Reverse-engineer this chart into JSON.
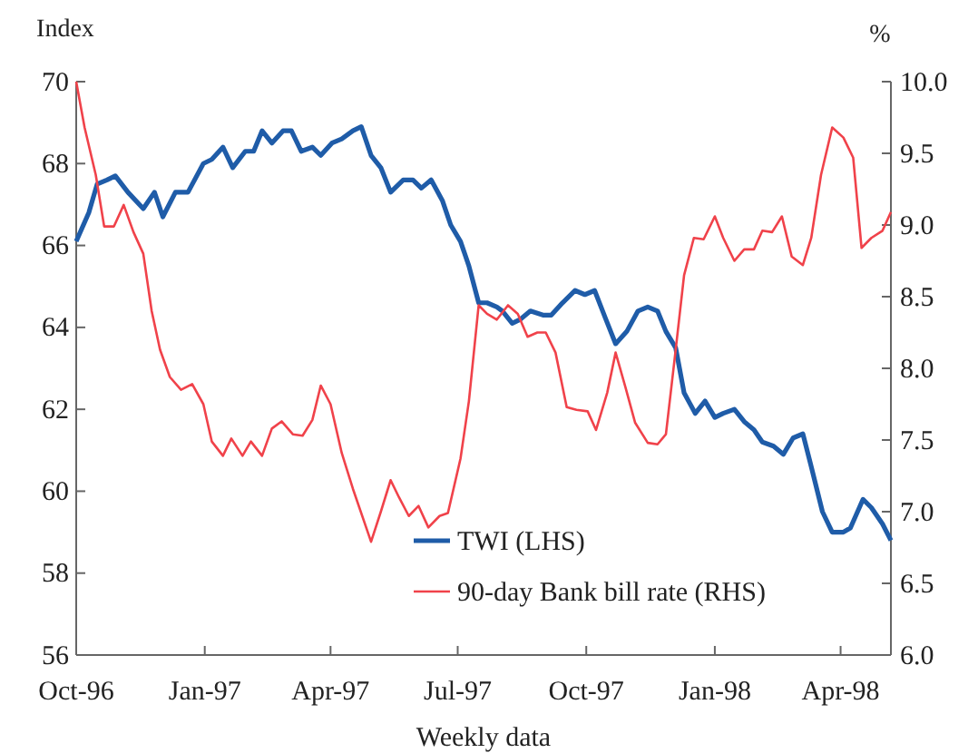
{
  "chart_data": {
    "type": "line",
    "xlabel": "Weekly data",
    "ylabel": "Index",
    "y2label": "%",
    "xlim": [
      "1996-10-01",
      "1998-05-07"
    ],
    "xticks": [
      {
        "value": "1996-10-01",
        "label": "Oct-96"
      },
      {
        "value": "1997-01-01",
        "label": "Jan-97"
      },
      {
        "value": "1997-04-01",
        "label": "Apr-97"
      },
      {
        "value": "1997-07-01",
        "label": "Jul-97"
      },
      {
        "value": "1997-10-01",
        "label": "Oct-97"
      },
      {
        "value": "1998-01-01",
        "label": "Jan-98"
      },
      {
        "value": "1998-04-01",
        "label": "Apr-98"
      }
    ],
    "ylim": [
      56,
      70
    ],
    "yticks": [
      56,
      58,
      60,
      62,
      64,
      66,
      68,
      70
    ],
    "y2lim": [
      6,
      10
    ],
    "y2ticks": [
      {
        "value": 6,
        "label": "6.0"
      },
      {
        "value": 6.5,
        "label": "6.5"
      },
      {
        "value": 7,
        "label": "7.0"
      },
      {
        "value": 7.5,
        "label": "7.5"
      },
      {
        "value": 8,
        "label": "8.0"
      },
      {
        "value": 8.5,
        "label": "8.5"
      },
      {
        "value": 9,
        "label": "9.0"
      },
      {
        "value": 9.5,
        "label": "9.5"
      },
      {
        "value": 10,
        "label": "10.0"
      }
    ],
    "grid": false,
    "legend": "bottom",
    "marker": "none",
    "line_style": "solid",
    "series": [
      {
        "name": "TWI (LHS)",
        "color": "#1f5ca8",
        "axis": "y",
        "x": [
          "1996-10-01",
          "1996-10-10",
          "1996-10-16",
          "1996-10-23",
          "1996-10-29",
          "1996-11-07",
          "1996-11-18",
          "1996-11-26",
          "1996-12-02",
          "1996-12-11",
          "1996-12-20",
          "1996-12-31",
          "1997-01-06",
          "1997-01-14",
          "1997-01-21",
          "1997-01-30",
          "1997-02-05",
          "1997-02-11",
          "1997-02-18",
          "1997-02-26",
          "1997-03-04",
          "1997-03-11",
          "1997-03-19",
          "1997-03-25",
          "1997-04-02",
          "1997-04-09",
          "1997-04-17",
          "1997-04-23",
          "1997-04-30",
          "1997-05-07",
          "1997-05-14",
          "1997-05-23",
          "1997-05-30",
          "1997-06-05",
          "1997-06-12",
          "1997-06-20",
          "1997-06-26",
          "1997-07-03",
          "1997-07-09",
          "1997-07-16",
          "1997-07-22",
          "1997-07-29",
          "1997-08-02",
          "1997-08-09",
          "1997-08-15",
          "1997-08-22",
          "1997-08-31",
          "1997-09-06",
          "1997-09-14",
          "1997-09-23",
          "1997-09-30",
          "1997-10-07",
          "1997-10-15",
          "1997-10-22",
          "1997-10-30",
          "1997-11-07",
          "1997-11-14",
          "1997-11-21",
          "1997-11-27",
          "1997-12-04",
          "1997-12-10",
          "1997-12-18",
          "1997-12-25",
          "1998-01-01",
          "1998-01-07",
          "1998-01-15",
          "1998-01-22",
          "1998-01-29",
          "1998-02-04",
          "1998-02-12",
          "1998-02-19",
          "1998-02-26",
          "1998-03-05",
          "1998-03-11",
          "1998-03-19",
          "1998-03-26",
          "1998-04-03",
          "1998-04-08",
          "1998-04-17",
          "1998-04-23",
          "1998-05-01",
          "1998-05-07"
        ],
        "values": [
          66.1,
          66.8,
          67.5,
          67.6,
          67.7,
          67.3,
          66.9,
          67.3,
          66.7,
          67.3,
          67.3,
          68.0,
          68.1,
          68.4,
          67.9,
          68.3,
          68.3,
          68.8,
          68.5,
          68.8,
          68.8,
          68.3,
          68.4,
          68.2,
          68.5,
          68.6,
          68.8,
          68.9,
          68.2,
          67.9,
          67.3,
          67.6,
          67.6,
          67.4,
          67.6,
          67.1,
          66.5,
          66.1,
          65.5,
          64.6,
          64.6,
          64.5,
          64.4,
          64.1,
          64.2,
          64.4,
          64.3,
          64.3,
          64.6,
          64.9,
          64.8,
          64.9,
          64.2,
          63.6,
          63.9,
          64.4,
          64.5,
          64.4,
          63.9,
          63.5,
          62.4,
          61.9,
          62.2,
          61.8,
          61.9,
          62.0,
          61.7,
          61.5,
          61.2,
          61.1,
          60.9,
          61.3,
          61.4,
          60.6,
          59.5,
          59.0,
          59.0,
          59.1,
          59.8,
          59.6,
          59.2,
          58.8
        ]
      },
      {
        "name": "90-day Bank bill rate (RHS)",
        "color": "#f0424a",
        "axis": "y2",
        "x": [
          "1996-10-01",
          "1996-10-07",
          "1996-10-15",
          "1996-10-21",
          "1996-10-28",
          "1996-11-04",
          "1996-11-11",
          "1996-11-18",
          "1996-11-24",
          "1996-11-30",
          "1996-12-07",
          "1996-12-15",
          "1996-12-23",
          "1996-12-31",
          "1997-01-06",
          "1997-01-14",
          "1997-01-20",
          "1997-01-28",
          "1997-02-03",
          "1997-02-11",
          "1997-02-18",
          "1997-02-25",
          "1997-03-05",
          "1997-03-12",
          "1997-03-19",
          "1997-03-25",
          "1997-04-01",
          "1997-04-09",
          "1997-04-17",
          "1997-04-30",
          "1997-05-07",
          "1997-05-14",
          "1997-05-20",
          "1997-05-27",
          "1997-06-03",
          "1997-06-10",
          "1997-06-18",
          "1997-06-24",
          "1997-07-03",
          "1997-07-09",
          "1997-07-16",
          "1997-07-22",
          "1997-07-29",
          "1997-08-06",
          "1997-08-13",
          "1997-08-20",
          "1997-08-27",
          "1997-09-02",
          "1997-09-09",
          "1997-09-17",
          "1997-09-24",
          "1997-10-02",
          "1997-10-08",
          "1997-10-16",
          "1997-10-22",
          "1997-10-29",
          "1997-11-05",
          "1997-11-14",
          "1997-11-21",
          "1997-11-27",
          "1997-12-04",
          "1997-12-10",
          "1997-12-17",
          "1997-12-24",
          "1998-01-01",
          "1998-01-07",
          "1998-01-15",
          "1998-01-22",
          "1998-01-29",
          "1998-02-04",
          "1998-02-11",
          "1998-02-18",
          "1998-02-25",
          "1998-03-05",
          "1998-03-11",
          "1998-03-18",
          "1998-03-26",
          "1998-04-03",
          "1998-04-10",
          "1998-04-16",
          "1998-04-23",
          "1998-05-01",
          "1998-05-07"
        ],
        "values": [
          10.0,
          9.68,
          9.35,
          8.99,
          8.99,
          9.14,
          8.95,
          8.8,
          8.4,
          8.13,
          7.94,
          7.85,
          7.89,
          7.75,
          7.49,
          7.39,
          7.51,
          7.39,
          7.49,
          7.39,
          7.58,
          7.63,
          7.54,
          7.53,
          7.64,
          7.88,
          7.75,
          7.41,
          7.16,
          6.79,
          7.0,
          7.22,
          7.1,
          6.97,
          7.04,
          6.89,
          6.97,
          6.99,
          7.37,
          7.77,
          8.44,
          8.38,
          8.34,
          8.44,
          8.38,
          8.22,
          8.25,
          8.25,
          8.11,
          7.73,
          7.71,
          7.7,
          7.57,
          7.83,
          8.11,
          7.87,
          7.62,
          7.48,
          7.47,
          7.54,
          8.13,
          8.65,
          8.91,
          8.9,
          9.06,
          8.91,
          8.75,
          8.83,
          8.83,
          8.96,
          8.95,
          9.06,
          8.78,
          8.72,
          8.91,
          9.35,
          9.68,
          9.61,
          9.47,
          8.84,
          8.91,
          8.96,
          9.09
        ]
      }
    ]
  }
}
